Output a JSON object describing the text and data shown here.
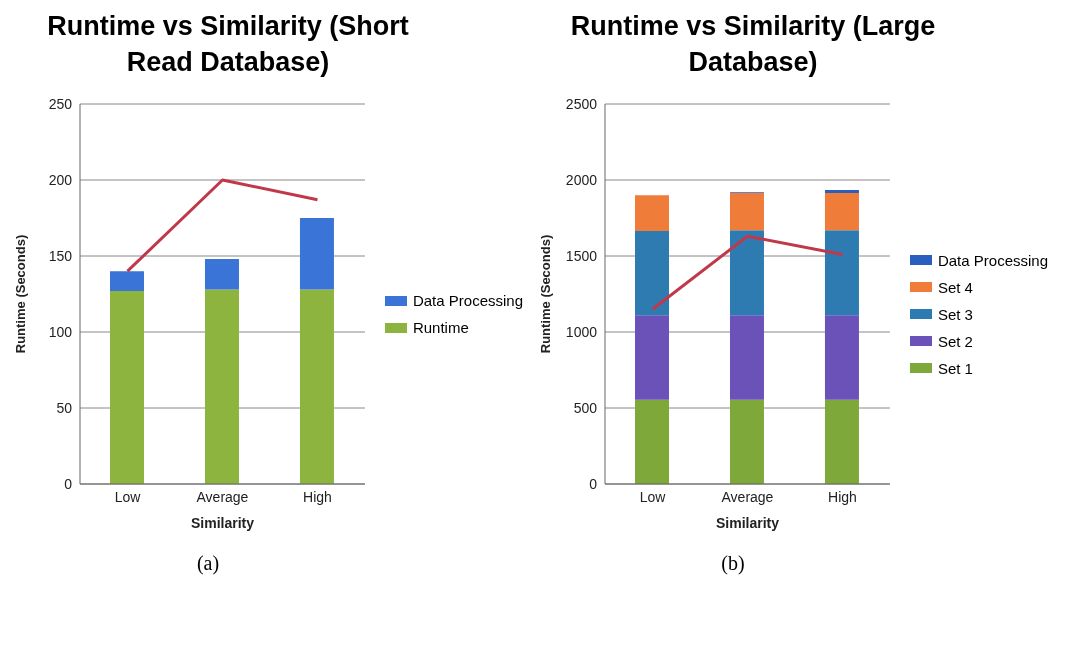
{
  "chart_data": [
    {
      "type": "bar",
      "title": "Runtime vs Similarity (Short Read Database)",
      "xlabel": "Similarity",
      "ylabel": "Runtime (Seconds)",
      "categories": [
        "Low",
        "Average",
        "High"
      ],
      "stacked": true,
      "ylim": [
        0,
        250
      ],
      "yticks": [
        0,
        50,
        100,
        150,
        200,
        250
      ],
      "grid": "y",
      "legend": "right",
      "marker": "none",
      "annotations": [
        "(a)"
      ],
      "series": [
        {
          "name": "Runtime",
          "color": "#8db43e",
          "values": [
            127,
            128,
            128
          ]
        },
        {
          "name": "Data Processing",
          "color": "#3a74d6",
          "values": [
            13,
            20,
            47
          ]
        },
        {
          "type": "line",
          "color": "#c0394b",
          "values": [
            140,
            200,
            187
          ]
        }
      ]
    },
    {
      "type": "bar",
      "title": "Runtime vs Similarity (Large Database)",
      "xlabel": "Similarity",
      "ylabel": "Runtime (Seconds)",
      "categories": [
        "Low",
        "Average",
        "High"
      ],
      "stacked": true,
      "ylim": [
        0,
        2500
      ],
      "yticks": [
        0,
        500,
        1000,
        1500,
        2000,
        2500
      ],
      "grid": "y",
      "legend": "right",
      "marker": "none",
      "annotations": [
        "(b)"
      ],
      "series": [
        {
          "name": "Set 1",
          "color": "#7fa83a",
          "values": [
            555,
            555,
            555
          ]
        },
        {
          "name": "Set 2",
          "color": "#6a52b8",
          "values": [
            555,
            555,
            555
          ]
        },
        {
          "name": "Set 3",
          "color": "#2e7bb2",
          "values": [
            555,
            560,
            560
          ]
        },
        {
          "name": "Set 4",
          "color": "#f07c3a",
          "values": [
            235,
            245,
            245
          ]
        },
        {
          "name": "Data Processing",
          "color": "#2a5fbf",
          "values": [
            0,
            5,
            20
          ]
        },
        {
          "type": "line",
          "color": "#c0394b",
          "values": [
            1150,
            1630,
            1510
          ]
        }
      ]
    }
  ]
}
